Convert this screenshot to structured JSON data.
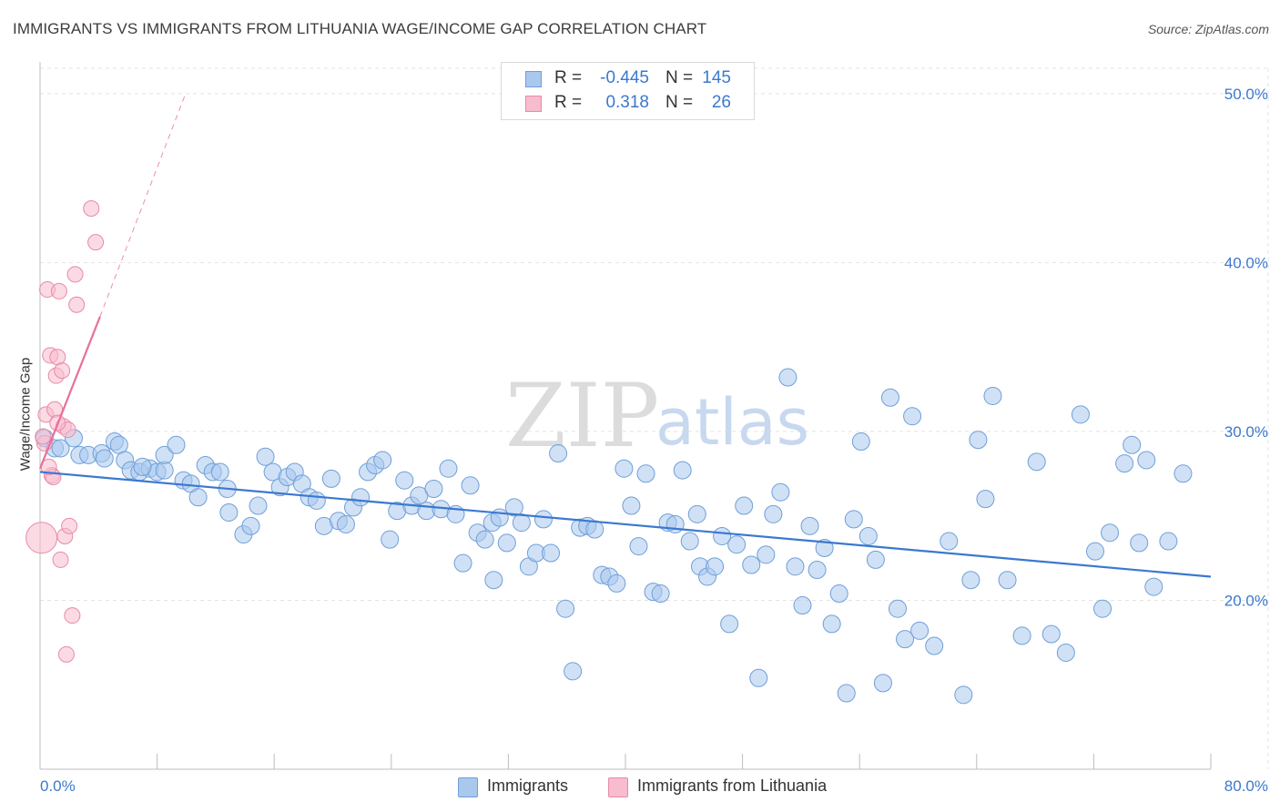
{
  "title": "IMMIGRANTS VS IMMIGRANTS FROM LITHUANIA WAGE/INCOME GAP CORRELATION CHART",
  "source": "Source: ZipAtlas.com",
  "watermark": {
    "zip": "ZIP",
    "atlas": "atlas"
  },
  "legend": {
    "rows": [
      {
        "r_label": "R =",
        "r_value": "-0.445",
        "n_label": "N =",
        "n_value": "145",
        "color": "#a9c8ee",
        "border": "#6f9fd8"
      },
      {
        "r_label": "R =",
        "r_value": "0.318",
        "n_label": "N =",
        "n_value": "26",
        "color": "#f7bccd",
        "border": "#e88aa8"
      }
    ]
  },
  "bottom_legend": {
    "immigrants": "Immigrants",
    "lithuania": "Immigrants from Lithuania"
  },
  "chart_data": {
    "type": "scatter",
    "title": "IMMIGRANTS VS IMMIGRANTS FROM LITHUANIA WAGE/INCOME GAP CORRELATION CHART",
    "xlabel": "",
    "ylabel": "Wage/Income Gap",
    "xlim": [
      0,
      80
    ],
    "ylim": [
      10,
      51.5
    ],
    "x_tick_labels": [
      "0.0%",
      "80.0%"
    ],
    "y_ticks": [
      20,
      30,
      40,
      50
    ],
    "y_tick_labels": [
      "20.0%",
      "30.0%",
      "40.0%",
      "50.0%"
    ],
    "grid": true,
    "colors": {
      "immigrants": "#3b78d0",
      "immigrants_fill": "#a9c8ee",
      "lithuania": "#e8709a",
      "lithuania_fill": "#f7bccd"
    },
    "series": [
      {
        "name": "Immigrants",
        "trend": {
          "x": [
            0,
            80
          ],
          "y": [
            27.6,
            21.4
          ]
        },
        "points": [
          [
            0.3,
            29.6
          ],
          [
            1.0,
            29.0
          ],
          [
            1.4,
            29.0
          ],
          [
            2.3,
            29.6
          ],
          [
            2.7,
            28.6
          ],
          [
            3.3,
            28.6
          ],
          [
            4.2,
            28.7
          ],
          [
            4.4,
            28.4
          ],
          [
            5.1,
            29.4
          ],
          [
            5.4,
            29.2
          ],
          [
            5.8,
            28.3
          ],
          [
            6.2,
            27.7
          ],
          [
            6.8,
            27.6
          ],
          [
            7.5,
            27.8
          ],
          [
            8.0,
            27.6
          ],
          [
            8.5,
            27.7
          ],
          [
            8.5,
            28.6
          ],
          [
            9.3,
            29.2
          ],
          [
            9.8,
            27.1
          ],
          [
            10.3,
            26.9
          ],
          [
            10.8,
            26.1
          ],
          [
            11.3,
            28.0
          ],
          [
            11.8,
            27.6
          ],
          [
            12.3,
            27.6
          ],
          [
            12.8,
            26.6
          ],
          [
            12.9,
            25.2
          ],
          [
            13.9,
            23.9
          ],
          [
            14.4,
            24.4
          ],
          [
            14.9,
            25.6
          ],
          [
            15.4,
            28.5
          ],
          [
            15.9,
            27.6
          ],
          [
            16.4,
            26.7
          ],
          [
            16.9,
            27.3
          ],
          [
            17.4,
            27.6
          ],
          [
            17.9,
            26.9
          ],
          [
            18.4,
            26.1
          ],
          [
            18.9,
            25.9
          ],
          [
            19.4,
            24.4
          ],
          [
            19.9,
            27.2
          ],
          [
            20.4,
            24.7
          ],
          [
            20.9,
            24.5
          ],
          [
            21.4,
            25.5
          ],
          [
            21.9,
            26.1
          ],
          [
            22.4,
            27.6
          ],
          [
            22.9,
            28.0
          ],
          [
            23.4,
            28.3
          ],
          [
            23.9,
            23.6
          ],
          [
            24.4,
            25.3
          ],
          [
            24.9,
            27.1
          ],
          [
            25.4,
            25.6
          ],
          [
            25.9,
            26.2
          ],
          [
            26.4,
            25.3
          ],
          [
            26.9,
            26.6
          ],
          [
            27.4,
            25.4
          ],
          [
            27.9,
            27.8
          ],
          [
            28.4,
            25.1
          ],
          [
            28.9,
            22.2
          ],
          [
            29.4,
            26.8
          ],
          [
            29.9,
            24.0
          ],
          [
            30.4,
            23.6
          ],
          [
            30.9,
            24.6
          ],
          [
            31.4,
            24.9
          ],
          [
            31.9,
            23.4
          ],
          [
            32.4,
            25.5
          ],
          [
            32.9,
            24.6
          ],
          [
            33.4,
            22.0
          ],
          [
            33.9,
            22.8
          ],
          [
            34.4,
            24.8
          ],
          [
            34.9,
            22.8
          ],
          [
            35.4,
            28.7
          ],
          [
            35.9,
            19.5
          ],
          [
            36.4,
            15.8
          ],
          [
            36.9,
            24.3
          ],
          [
            37.4,
            24.4
          ],
          [
            37.9,
            24.2
          ],
          [
            38.4,
            21.5
          ],
          [
            38.9,
            21.4
          ],
          [
            39.4,
            21.0
          ],
          [
            39.9,
            27.8
          ],
          [
            40.4,
            25.6
          ],
          [
            40.9,
            23.2
          ],
          [
            41.4,
            27.5
          ],
          [
            41.9,
            20.5
          ],
          [
            42.4,
            20.4
          ],
          [
            42.9,
            24.6
          ],
          [
            43.4,
            24.5
          ],
          [
            43.9,
            27.7
          ],
          [
            44.4,
            23.5
          ],
          [
            44.9,
            25.1
          ],
          [
            45.1,
            22.0
          ],
          [
            45.6,
            21.4
          ],
          [
            46.1,
            22.0
          ],
          [
            46.6,
            23.8
          ],
          [
            47.1,
            18.6
          ],
          [
            47.6,
            23.3
          ],
          [
            48.1,
            25.6
          ],
          [
            48.6,
            22.1
          ],
          [
            49.1,
            15.4
          ],
          [
            49.6,
            22.7
          ],
          [
            50.1,
            25.1
          ],
          [
            50.6,
            26.4
          ],
          [
            51.1,
            33.2
          ],
          [
            51.6,
            22.0
          ],
          [
            52.1,
            19.7
          ],
          [
            52.6,
            24.4
          ],
          [
            53.1,
            21.8
          ],
          [
            53.6,
            23.1
          ],
          [
            54.1,
            18.6
          ],
          [
            54.6,
            20.4
          ],
          [
            55.1,
            14.5
          ],
          [
            55.6,
            24.8
          ],
          [
            56.1,
            29.4
          ],
          [
            56.6,
            23.8
          ],
          [
            57.1,
            22.4
          ],
          [
            57.6,
            15.1
          ],
          [
            58.1,
            32.0
          ],
          [
            58.6,
            19.5
          ],
          [
            59.1,
            17.7
          ],
          [
            59.6,
            30.9
          ],
          [
            60.1,
            18.2
          ],
          [
            61.1,
            17.3
          ],
          [
            62.1,
            23.5
          ],
          [
            63.1,
            14.4
          ],
          [
            63.6,
            21.2
          ],
          [
            64.1,
            29.5
          ],
          [
            64.6,
            26.0
          ],
          [
            65.1,
            32.1
          ],
          [
            66.1,
            21.2
          ],
          [
            67.1,
            17.9
          ],
          [
            68.1,
            28.2
          ],
          [
            69.1,
            18.0
          ],
          [
            70.1,
            16.9
          ],
          [
            71.1,
            31.0
          ],
          [
            72.1,
            22.9
          ],
          [
            72.6,
            19.5
          ],
          [
            73.1,
            24.0
          ],
          [
            74.1,
            28.1
          ],
          [
            74.6,
            29.2
          ],
          [
            75.1,
            23.4
          ],
          [
            75.6,
            28.3
          ],
          [
            76.1,
            20.8
          ],
          [
            77.1,
            23.5
          ],
          [
            78.1,
            27.5
          ],
          [
            7.0,
            27.9
          ],
          [
            31.0,
            21.2
          ]
        ]
      },
      {
        "name": "Immigrants from Lithuania",
        "trend": {
          "x": [
            0,
            4.1
          ],
          "y": [
            27.8,
            36.8
          ]
        },
        "trend_extension": {
          "x": [
            4.1,
            9.9
          ],
          "y": [
            36.8,
            49.9
          ]
        },
        "points": [
          [
            0.1,
            23.7
          ],
          [
            0.3,
            29.3
          ],
          [
            0.4,
            31.0
          ],
          [
            0.5,
            38.4
          ],
          [
            0.7,
            34.5
          ],
          [
            0.8,
            27.4
          ],
          [
            0.9,
            27.3
          ],
          [
            1.0,
            31.3
          ],
          [
            1.1,
            33.3
          ],
          [
            1.2,
            34.4
          ],
          [
            1.3,
            38.3
          ],
          [
            1.4,
            22.4
          ],
          [
            1.5,
            33.6
          ],
          [
            1.6,
            30.3
          ],
          [
            1.7,
            23.8
          ],
          [
            1.8,
            16.8
          ],
          [
            1.9,
            30.1
          ],
          [
            2.0,
            24.4
          ],
          [
            2.2,
            19.1
          ],
          [
            2.4,
            39.3
          ],
          [
            2.5,
            37.5
          ],
          [
            3.5,
            43.2
          ],
          [
            3.8,
            41.2
          ],
          [
            0.6,
            27.9
          ],
          [
            0.2,
            29.7
          ],
          [
            1.2,
            30.5
          ]
        ]
      }
    ]
  }
}
